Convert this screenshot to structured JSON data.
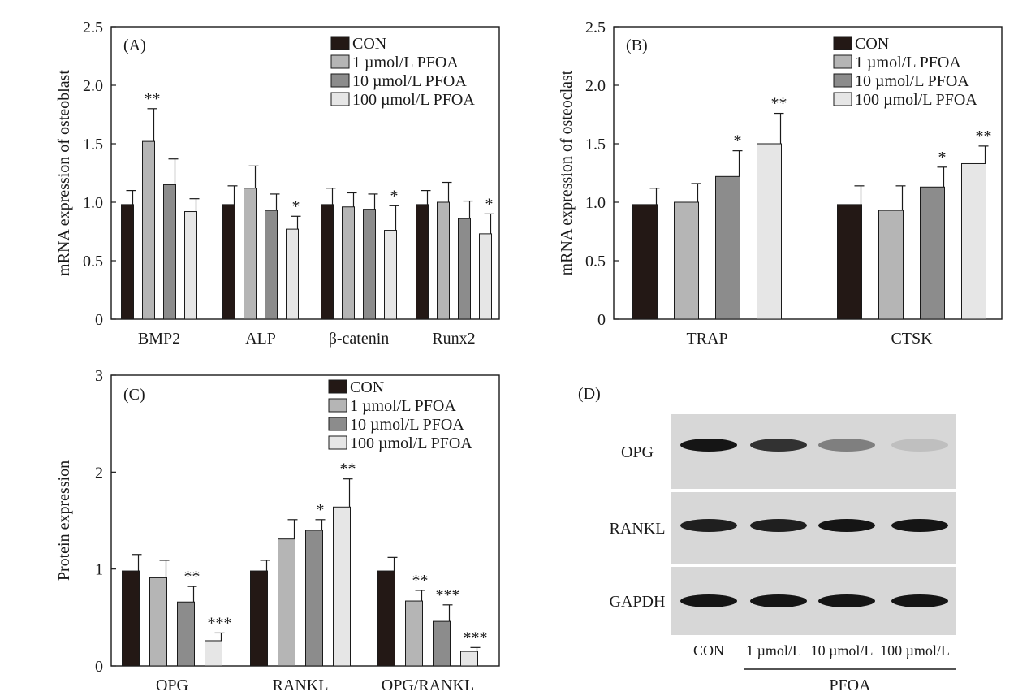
{
  "colors": {
    "CON": "#231815",
    "1 µmol/L PFOA": "#b5b5b5",
    "10 µmol/L PFOA": "#8c8c8c",
    "100 µmol/L PFOA": "#e6e6e6",
    "axis": "#1a1a1a",
    "blot_bg": "#d7d7d7"
  },
  "chart_data": [
    {
      "panel": "(A)",
      "type": "bar",
      "title": "",
      "ylabel": "mRNA expression of osteoblast",
      "xlabel": "",
      "ylim": [
        0,
        2.5
      ],
      "yticks": [
        "0",
        "0.5",
        "1.0",
        "1.5",
        "2.0",
        "2.5"
      ],
      "categories": [
        "BMP2",
        "ALP",
        "β-catenin",
        "Runx2"
      ],
      "legend_position": "top-right",
      "series": [
        {
          "name": "CON",
          "values": [
            0.98,
            0.98,
            0.98,
            0.98
          ],
          "errors": [
            0.12,
            0.16,
            0.14,
            0.12
          ],
          "sig": [
            "",
            "",
            "",
            ""
          ]
        },
        {
          "name": "1 µmol/L PFOA",
          "values": [
            1.52,
            1.12,
            0.96,
            1.0
          ],
          "errors": [
            0.28,
            0.19,
            0.12,
            0.17
          ],
          "sig": [
            "**",
            "",
            "",
            ""
          ]
        },
        {
          "name": "10 µmol/L PFOA",
          "values": [
            1.15,
            0.93,
            0.94,
            0.86
          ],
          "errors": [
            0.22,
            0.14,
            0.13,
            0.15
          ],
          "sig": [
            "",
            "",
            "",
            ""
          ]
        },
        {
          "name": "100 µmol/L PFOA",
          "values": [
            0.92,
            0.77,
            0.76,
            0.73
          ],
          "errors": [
            0.11,
            0.11,
            0.21,
            0.17
          ],
          "sig": [
            "",
            "*",
            "*",
            "*"
          ]
        }
      ]
    },
    {
      "panel": "(B)",
      "type": "bar",
      "title": "",
      "ylabel": "mRNA expression of osteoclast",
      "xlabel": "",
      "ylim": [
        0,
        2.5
      ],
      "yticks": [
        "0",
        "0.5",
        "1.0",
        "1.5",
        "2.0",
        "2.5"
      ],
      "categories": [
        "TRAP",
        "CTSK"
      ],
      "legend_position": "top-right",
      "series": [
        {
          "name": "CON",
          "values": [
            0.98,
            0.98
          ],
          "errors": [
            0.14,
            0.16
          ],
          "sig": [
            "",
            ""
          ]
        },
        {
          "name": "1 µmol/L PFOA",
          "values": [
            1.0,
            0.93
          ],
          "errors": [
            0.16,
            0.21
          ],
          "sig": [
            "",
            ""
          ]
        },
        {
          "name": "10 µmol/L PFOA",
          "values": [
            1.22,
            1.13
          ],
          "errors": [
            0.22,
            0.17
          ],
          "sig": [
            "*",
            "*"
          ]
        },
        {
          "name": "100 µmol/L PFOA",
          "values": [
            1.5,
            1.33
          ],
          "errors": [
            0.26,
            0.15
          ],
          "sig": [
            "**",
            "**"
          ]
        }
      ]
    },
    {
      "panel": "(C)",
      "type": "bar",
      "title": "",
      "ylabel": "Protein expression",
      "xlabel": "",
      "ylim": [
        0,
        3
      ],
      "yticks": [
        "0",
        "1",
        "2",
        "3"
      ],
      "categories": [
        "OPG",
        "RANKL",
        "OPG/RANKL"
      ],
      "legend_position": "top-right",
      "series": [
        {
          "name": "CON",
          "values": [
            0.98,
            0.98,
            0.98
          ],
          "errors": [
            0.17,
            0.11,
            0.14
          ],
          "sig": [
            "",
            "",
            ""
          ]
        },
        {
          "name": "1 µmol/L PFOA",
          "values": [
            0.91,
            1.31,
            0.67
          ],
          "errors": [
            0.18,
            0.2,
            0.11
          ],
          "sig": [
            "",
            "",
            "**"
          ]
        },
        {
          "name": "10 µmol/L PFOA",
          "values": [
            0.66,
            1.4,
            0.46
          ],
          "errors": [
            0.16,
            0.11,
            0.17
          ],
          "sig": [
            "**",
            "*",
            "***"
          ]
        },
        {
          "name": "100 µmol/L PFOA",
          "values": [
            0.26,
            1.64,
            0.15
          ],
          "errors": [
            0.08,
            0.29,
            0.04
          ],
          "sig": [
            "***",
            "**",
            "***"
          ]
        }
      ]
    }
  ],
  "blot": {
    "panel": "(D)",
    "rows": [
      {
        "label": "OPG",
        "intensity": [
          1.0,
          0.85,
          0.45,
          0.12
        ]
      },
      {
        "label": "RANKL",
        "intensity": [
          0.95,
          0.95,
          1.0,
          1.0
        ]
      },
      {
        "label": "GAPDH",
        "intensity": [
          1.0,
          1.0,
          1.0,
          1.0
        ]
      }
    ],
    "lanes": [
      "CON",
      "1 µmol/L",
      "10 µmol/L",
      "100 µmol/L"
    ],
    "group_label": "PFOA"
  }
}
